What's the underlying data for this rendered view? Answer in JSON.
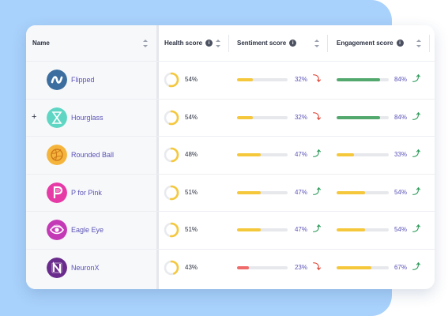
{
  "colors": {
    "accent_purple": "#5b53b8",
    "bar_yellow": "#f5c83c",
    "bar_green": "#53a86e",
    "bar_red": "#ef6b6b",
    "trend_up": "#2e9b5a",
    "trend_down": "#e14b3c",
    "panel_blue": "#a8d1fb"
  },
  "header": {
    "name_label": "Name",
    "health_label": "Health score",
    "sentiment_label": "Sentiment score",
    "engagement_label": "Engagement score",
    "info_glyph": "i"
  },
  "rows": [
    {
      "name": "Flipped",
      "logo_icon": "wave-logo-icon",
      "logo_color": "#3c6fa0",
      "expand": "",
      "health": 54,
      "health_label": "54%",
      "sentiment": 32,
      "sentiment_label": "32%",
      "sentiment_trend": "down",
      "sentiment_color": "#f5c83c",
      "engagement": 84,
      "engagement_label": "84%",
      "engagement_trend": "up",
      "engagement_color": "#53a86e"
    },
    {
      "name": "Hourglass",
      "logo_icon": "hourglass-logo-icon",
      "logo_color": "#5fd6c4",
      "expand": "+",
      "health": 54,
      "health_label": "54%",
      "sentiment": 32,
      "sentiment_label": "32%",
      "sentiment_trend": "down",
      "sentiment_color": "#f5c83c",
      "engagement": 84,
      "engagement_label": "84%",
      "engagement_trend": "up",
      "engagement_color": "#53a86e"
    },
    {
      "name": "Rounded Ball",
      "logo_icon": "ball-logo-icon",
      "logo_color": "#f5b53c",
      "expand": "",
      "health": 48,
      "health_label": "48%",
      "sentiment": 47,
      "sentiment_label": "47%",
      "sentiment_trend": "up",
      "sentiment_color": "#f5c83c",
      "engagement": 33,
      "engagement_label": "33%",
      "engagement_trend": "up",
      "engagement_color": "#f5c83c"
    },
    {
      "name": "P for Pink",
      "logo_icon": "p-letter-logo-icon",
      "logo_color": "#e63aa6",
      "expand": "",
      "health": 51,
      "health_label": "51%",
      "sentiment": 47,
      "sentiment_label": "47%",
      "sentiment_trend": "up",
      "sentiment_color": "#f5c83c",
      "engagement": 54,
      "engagement_label": "54%",
      "engagement_trend": "up",
      "engagement_color": "#f5c83c"
    },
    {
      "name": "Eagle Eye",
      "logo_icon": "eye-logo-icon",
      "logo_color": "#c43ab6",
      "expand": "",
      "health": 51,
      "health_label": "51%",
      "sentiment": 47,
      "sentiment_label": "47%",
      "sentiment_trend": "up",
      "sentiment_color": "#f5c83c",
      "engagement": 54,
      "engagement_label": "54%",
      "engagement_trend": "up",
      "engagement_color": "#f5c83c"
    },
    {
      "name": "NeuronX",
      "logo_icon": "n-letter-logo-icon",
      "logo_color": "#6a2c8c",
      "expand": "",
      "health": 43,
      "health_label": "43%",
      "sentiment": 23,
      "sentiment_label": "23%",
      "sentiment_trend": "down",
      "sentiment_color": "#ef6b6b",
      "engagement": 67,
      "engagement_label": "67%",
      "engagement_trend": "up",
      "engagement_color": "#f5c83c"
    }
  ]
}
